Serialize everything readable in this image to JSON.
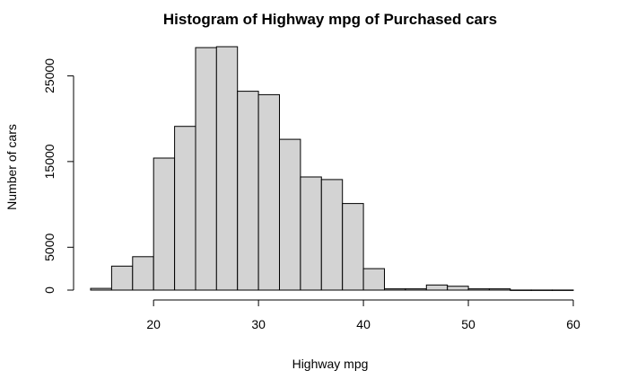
{
  "chart_data": {
    "type": "bar",
    "title": "Histogram of Highway mpg of Purchased cars",
    "xlabel": "Highway mpg",
    "ylabel": "Number of cars",
    "bins": [
      {
        "from": 14,
        "to": 16,
        "count": 200
      },
      {
        "from": 16,
        "to": 18,
        "count": 2800
      },
      {
        "from": 18,
        "to": 20,
        "count": 3900
      },
      {
        "from": 20,
        "to": 22,
        "count": 15400
      },
      {
        "from": 22,
        "to": 24,
        "count": 19100
      },
      {
        "from": 24,
        "to": 26,
        "count": 28300
      },
      {
        "from": 26,
        "to": 28,
        "count": 28400
      },
      {
        "from": 28,
        "to": 30,
        "count": 23200
      },
      {
        "from": 30,
        "to": 32,
        "count": 22800
      },
      {
        "from": 32,
        "to": 34,
        "count": 17600
      },
      {
        "from": 34,
        "to": 36,
        "count": 13200
      },
      {
        "from": 36,
        "to": 38,
        "count": 12900
      },
      {
        "from": 38,
        "to": 40,
        "count": 10100
      },
      {
        "from": 40,
        "to": 42,
        "count": 2500
      },
      {
        "from": 42,
        "to": 44,
        "count": 150
      },
      {
        "from": 44,
        "to": 46,
        "count": 150
      },
      {
        "from": 46,
        "to": 48,
        "count": 600
      },
      {
        "from": 48,
        "to": 50,
        "count": 450
      },
      {
        "from": 50,
        "to": 52,
        "count": 150
      },
      {
        "from": 52,
        "to": 54,
        "count": 150
      },
      {
        "from": 54,
        "to": 56,
        "count": 10
      },
      {
        "from": 56,
        "to": 58,
        "count": 10
      },
      {
        "from": 58,
        "to": 60,
        "count": 10
      }
    ],
    "x_ticks": [
      20,
      30,
      40,
      50,
      60
    ],
    "y_ticks": [
      0,
      5000,
      15000,
      25000
    ],
    "xlim": [
      14,
      60
    ],
    "ylim": [
      0,
      28400
    ],
    "bar_color": "#d3d3d3",
    "grid": false,
    "legend": "none"
  }
}
